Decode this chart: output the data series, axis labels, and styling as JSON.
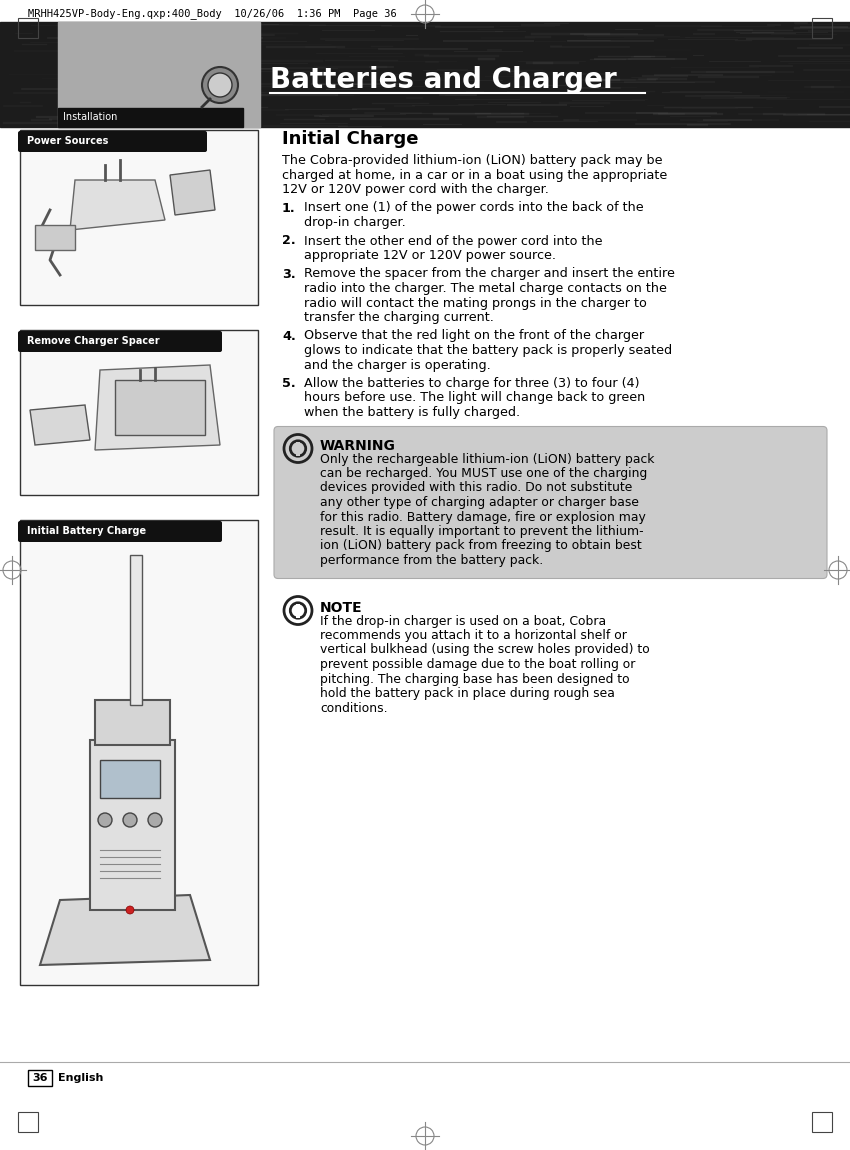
{
  "page_number": "36",
  "language": "English",
  "header_text": "MRHH425VP-Body-Eng.qxp:400_Body  10/26/06  1:36 PM  Page 36",
  "section_label": "Installation",
  "title": "Batteries and Charger",
  "section_title": "Initial Charge",
  "intro_text": "The Cobra-provided lithium-ion (LiON) battery pack may be\ncharged at home, in a car or in a boat using the appropriate\n12V or 120V power cord with the charger.",
  "step1_lines": [
    "Insert one (1) of the power cords into the back of the",
    "drop-in charger."
  ],
  "step2_lines": [
    "Insert the other end of the power cord into the",
    "appropriate 12V or 120V power source."
  ],
  "step3_lines": [
    "Remove the spacer from the charger and insert the entire",
    "radio into the charger. The metal charge contacts on the",
    "radio will contact the mating prongs in the charger to",
    "transfer the charging current."
  ],
  "step4_lines": [
    "Observe that the red light on the front of the charger",
    "glows to indicate that the battery pack is properly seated",
    "and the charger is operating."
  ],
  "step5_lines": [
    "Allow the batteries to charge for three (3) to four (4)",
    "hours before use. The light will change back to green",
    "when the battery is fully charged."
  ],
  "warning_title": "WARNING",
  "warning_text_lines": [
    "Only the rechargeable lithium-ion (LiON) battery pack",
    "can be recharged. You MUST use one of the charging",
    "devices provided with this radio. Do not substitute",
    "any other type of charging adapter or charger base",
    "for this radio. Battery damage, fire or explosion may",
    "result. It is equally important to prevent the lithium-",
    "ion (LiON) battery pack from freezing to obtain best",
    "performance from the battery pack."
  ],
  "note_title": "NOTE",
  "note_text_lines": [
    "If the drop-in charger is used on a boat, Cobra",
    "recommends you attach it to a horizontal shelf or",
    "vertical bulkhead (using the screw holes provided) to",
    "prevent possible damage due to the boat rolling or",
    "pitching. The charging base has been designed to",
    "hold the battery pack in place during rough sea",
    "conditions."
  ],
  "sidebar_label_1": "Power Sources",
  "sidebar_label_2": "Remove Charger Spacer",
  "sidebar_label_3": "Initial Battery Charge",
  "bg_color": "#ffffff",
  "text_color": "#000000",
  "header_dark_color": "#1a1a1a",
  "warning_bg": "#cccccc",
  "label_pill_color": "#111111",
  "label_text_color": "#ffffff"
}
